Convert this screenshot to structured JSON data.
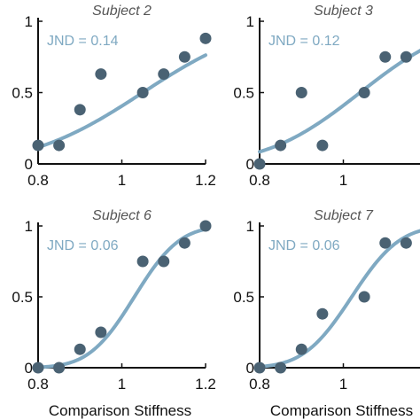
{
  "chart_data": [
    {
      "type": "scatter",
      "title": "Subject 2",
      "xlabel": "",
      "ylabel": "",
      "xlim": [
        0.8,
        1.2
      ],
      "ylim": [
        0,
        1
      ],
      "xticks": [
        "0.8",
        "1",
        "1.2"
      ],
      "yticks": [
        "0",
        "0.5",
        "1"
      ],
      "annotation": "JND = 0.14",
      "fit": {
        "mu": 1.05,
        "sigma": 0.21
      },
      "points": {
        "x": [
          0.8,
          0.85,
          0.9,
          0.95,
          1.05,
          1.1,
          1.15,
          1.2
        ],
        "y": [
          0.13,
          0.13,
          0.38,
          0.63,
          0.5,
          0.63,
          0.75,
          0.88
        ]
      }
    },
    {
      "type": "scatter",
      "title": "Subject 3",
      "xlabel": "",
      "ylabel": "",
      "xlim": [
        0.8,
        1.2
      ],
      "ylim": [
        0,
        1
      ],
      "xticks": [
        "0.8",
        "1"
      ],
      "yticks": [
        "0",
        "0.5",
        "1"
      ],
      "annotation": "JND = 0.12",
      "fit": {
        "mu": 1.04,
        "sigma": 0.175
      },
      "points": {
        "x": [
          0.8,
          0.85,
          0.9,
          0.95,
          1.05,
          1.1,
          1.15
        ],
        "y": [
          0.0,
          0.13,
          0.5,
          0.13,
          0.5,
          0.75,
          0.75
        ]
      }
    },
    {
      "type": "scatter",
      "title": "Subject 6",
      "xlabel": "Comparison Stiffness",
      "ylabel": "",
      "xlim": [
        0.8,
        1.2
      ],
      "ylim": [
        0,
        1
      ],
      "xticks": [
        "0.8",
        "1",
        "1.2"
      ],
      "yticks": [
        "0",
        "0.5",
        "1"
      ],
      "annotation": "JND = 0.06",
      "fit": {
        "mu": 1.03,
        "sigma": 0.085
      },
      "points": {
        "x": [
          0.8,
          0.85,
          0.9,
          0.95,
          1.05,
          1.1,
          1.15,
          1.2
        ],
        "y": [
          0.0,
          0.0,
          0.13,
          0.25,
          0.75,
          0.75,
          0.88,
          1.0
        ]
      }
    },
    {
      "type": "scatter",
      "title": "Subject 7",
      "xlabel": "Comparison Stiffness",
      "ylabel": "",
      "xlim": [
        0.8,
        1.2
      ],
      "ylim": [
        0,
        1
      ],
      "xticks": [
        "0.8",
        "1"
      ],
      "yticks": [
        "0",
        "0.5",
        "1"
      ],
      "annotation": "JND = 0.06",
      "fit": {
        "mu": 1.02,
        "sigma": 0.09
      },
      "points": {
        "x": [
          0.8,
          0.85,
          0.9,
          0.95,
          1.05,
          1.1,
          1.15
        ],
        "y": [
          0.0,
          0.0,
          0.13,
          0.38,
          0.5,
          0.88,
          0.88
        ]
      }
    }
  ],
  "colors": {
    "point": "#4a6273",
    "fit_line": "#7fa9c2",
    "annotation": "#7fa9c2"
  }
}
